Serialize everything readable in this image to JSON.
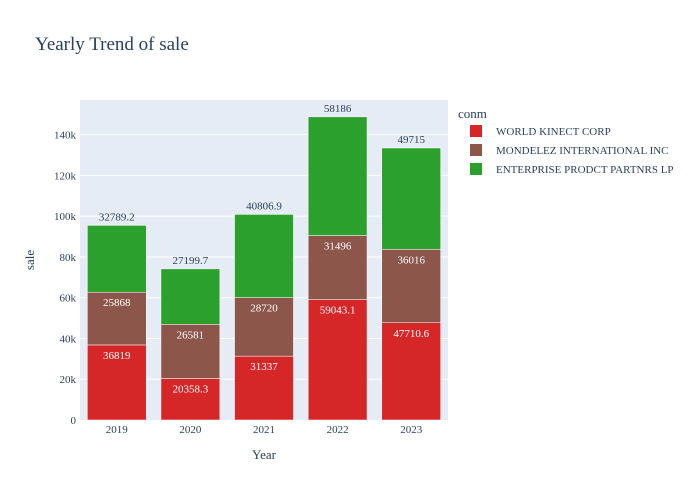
{
  "chart_data": {
    "type": "bar",
    "stacked": true,
    "title": "Yearly Trend of sale",
    "xlabel": "Year",
    "ylabel": "sale",
    "categories": [
      "2019",
      "2020",
      "2021",
      "2022",
      "2023"
    ],
    "ylim": [
      0,
      157000
    ],
    "yticks": [
      0,
      20000,
      40000,
      60000,
      80000,
      100000,
      120000,
      140000
    ],
    "ytick_labels": [
      "0",
      "20k",
      "40k",
      "60k",
      "80k",
      "100k",
      "120k",
      "140k"
    ],
    "grid": true,
    "legend_title": "conm",
    "legend_position": "top-right",
    "series": [
      {
        "name": "WORLD KINECT CORP",
        "color": "#d62728",
        "values": [
          36819,
          20358.3,
          31337,
          59043.1,
          47710.6
        ],
        "labels": [
          "36819",
          "20358.3",
          "31337",
          "59043.1",
          "47710.6"
        ]
      },
      {
        "name": "MONDELEZ INTERNATIONAL INC",
        "color": "#8c564b",
        "values": [
          25868,
          26581,
          28720,
          31496,
          36016
        ],
        "labels": [
          "25868",
          "26581",
          "28720",
          "31496",
          "36016"
        ]
      },
      {
        "name": "ENTERPRISE PRODCT PARTNRS LP",
        "color": "#2ca02c",
        "values": [
          32789.2,
          27199.7,
          40806.9,
          58186,
          49715
        ],
        "labels": [
          "32789.2",
          "27199.7",
          "40806.9",
          "58186",
          "49715"
        ]
      }
    ]
  },
  "colors": {
    "plot_background": "#e5ecf6",
    "grid": "#ffffff",
    "text": "#2a3f5f"
  }
}
